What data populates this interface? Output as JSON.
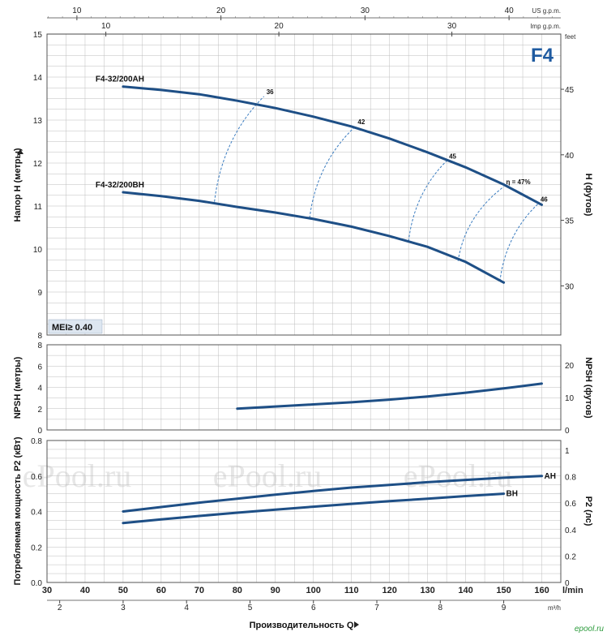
{
  "chart_data": {
    "type": "line",
    "badge": "F4",
    "mei_label": "MEI≥ 0.40",
    "watermark": "ePool.ru",
    "site_mark": "epool.ru",
    "colors": {
      "curve": "#1e4f86",
      "grid": "#bdbdbd",
      "badge": "#1e5aa0",
      "mei_bg": "#dde6f0"
    },
    "bottom_axis": {
      "label": "Производительность Q",
      "unit": "l/min",
      "range": [
        30,
        165
      ],
      "ticks": [
        30,
        40,
        50,
        60,
        70,
        80,
        90,
        100,
        110,
        120,
        130,
        140,
        150,
        160
      ]
    },
    "m3h_axis": {
      "unit": "m³/h",
      "ticks": [
        2,
        3,
        4,
        5,
        6,
        7,
        8,
        9
      ]
    },
    "us_gpm_axis": {
      "unit": "US g.p.m.",
      "ticks": [
        10,
        20,
        30,
        40
      ]
    },
    "imp_gpm_axis": {
      "unit": "Imp g.p.m.",
      "ticks": [
        10,
        20,
        30,
        40
      ]
    },
    "head_chart": {
      "ylabel": "Напор H (метры)",
      "ylim": [
        8,
        15
      ],
      "yticks": [
        8,
        9,
        10,
        11,
        12,
        13,
        14,
        15
      ],
      "right_label": "H (футов)",
      "right_unit": "feet",
      "right_ticks": [
        30,
        35,
        40,
        45
      ],
      "series": [
        {
          "name": "F4-32/200AH",
          "x": [
            50,
            60,
            70,
            80,
            90,
            100,
            110,
            120,
            130,
            140,
            150,
            160
          ],
          "y": [
            13.78,
            13.7,
            13.6,
            13.45,
            13.28,
            13.08,
            12.85,
            12.57,
            12.25,
            11.9,
            11.5,
            11.03
          ]
        },
        {
          "name": "F4-32/200BH",
          "x": [
            50,
            60,
            70,
            80,
            90,
            100,
            110,
            120,
            130,
            140,
            150
          ],
          "y": [
            11.32,
            11.23,
            11.12,
            10.98,
            10.85,
            10.7,
            10.52,
            10.3,
            10.05,
            9.7,
            9.22
          ]
        }
      ],
      "efficiency_lines": [
        {
          "label": "36",
          "from": [
            74,
            11.1
          ],
          "to": [
            87,
            13.55
          ]
        },
        {
          "label": "42",
          "from": [
            99,
            10.72
          ],
          "to": [
            111,
            12.85
          ]
        },
        {
          "label": "45",
          "from": [
            125,
            10.18
          ],
          "to": [
            135,
            12.05
          ]
        },
        {
          "label": "η = 47%",
          "from": [
            138,
            9.72
          ],
          "to": [
            150,
            11.45
          ]
        },
        {
          "label": "46",
          "from": [
            149,
            9.25
          ],
          "to": [
            159,
            11.05
          ]
        }
      ]
    },
    "npsh_chart": {
      "ylabel": "NPSH (метры)",
      "ylim": [
        0,
        8
      ],
      "yticks": [
        0,
        2,
        4,
        6,
        8
      ],
      "right_label": "NPSH (футов)",
      "right_ticks": [
        0,
        10,
        20
      ],
      "series": [
        {
          "name": "NPSH",
          "x": [
            80,
            90,
            100,
            110,
            120,
            130,
            140,
            150,
            160
          ],
          "y": [
            2.0,
            2.2,
            2.4,
            2.6,
            2.85,
            3.15,
            3.5,
            3.9,
            4.35
          ]
        }
      ]
    },
    "power_chart": {
      "ylabel": "Потребляемая мощность P2 (кВт)",
      "ylim": [
        0,
        0.8
      ],
      "yticks": [
        0,
        0.2,
        0.4,
        0.6,
        0.8
      ],
      "right_label": "P2 (лс)",
      "right_ticks": [
        0,
        0.2,
        0.4,
        0.6,
        0.8,
        1
      ],
      "series": [
        {
          "name": "AH",
          "x": [
            50,
            60,
            70,
            80,
            90,
            100,
            110,
            120,
            130,
            140,
            150,
            160
          ],
          "y": [
            0.4,
            0.425,
            0.45,
            0.472,
            0.495,
            0.515,
            0.535,
            0.55,
            0.565,
            0.578,
            0.59,
            0.6
          ]
        },
        {
          "name": "BH",
          "x": [
            50,
            60,
            70,
            80,
            90,
            100,
            110,
            120,
            130,
            140,
            150
          ],
          "y": [
            0.335,
            0.355,
            0.375,
            0.393,
            0.41,
            0.427,
            0.443,
            0.458,
            0.472,
            0.487,
            0.5
          ]
        }
      ]
    }
  }
}
